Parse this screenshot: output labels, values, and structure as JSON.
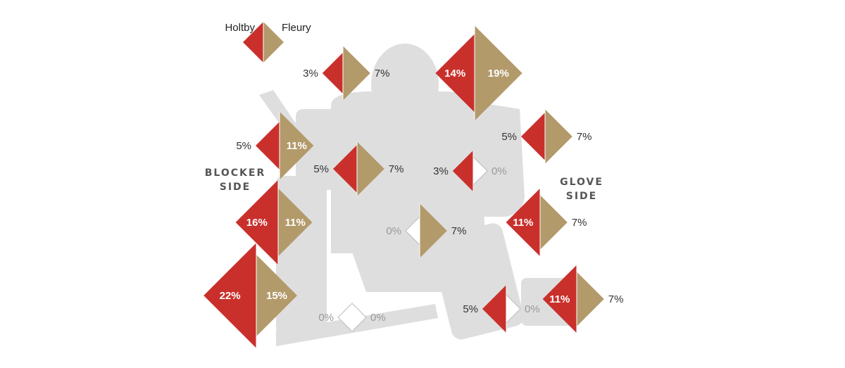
{
  "colors": {
    "holtby": "#c9302c",
    "fleury": "#b39a6b",
    "silhouette": "#dedede",
    "zero_outline": "#bbbbbb"
  },
  "legend": {
    "left": "Holtby",
    "right": "Fleury"
  },
  "sides": {
    "blocker": [
      "BLOCKER",
      "SIDE"
    ],
    "glove": [
      "GLOVE",
      "SIDE"
    ]
  },
  "chart_data": {
    "type": "diamond-pair",
    "series": [
      {
        "name": "Holtby",
        "color": "#c9302c"
      },
      {
        "name": "Fleury",
        "color": "#b39a6b"
      }
    ],
    "zones": [
      {
        "holtby": 3,
        "fleury": 7,
        "holtby_label": "3%",
        "fleury_label": "7%"
      },
      {
        "holtby": 14,
        "fleury": 19,
        "holtby_label": "14%",
        "fleury_label": "19%"
      },
      {
        "holtby": 5,
        "fleury": 11,
        "holtby_label": "5%",
        "fleury_label": "11%"
      },
      {
        "holtby": 5,
        "fleury": 7,
        "holtby_label": "5%",
        "fleury_label": "7%"
      },
      {
        "holtby": 5,
        "fleury": 7,
        "holtby_label": "5%",
        "fleury_label": "7%"
      },
      {
        "holtby": 3,
        "fleury": 0,
        "holtby_label": "3%",
        "fleury_label": "0%"
      },
      {
        "holtby": 16,
        "fleury": 11,
        "holtby_label": "16%",
        "fleury_label": "11%"
      },
      {
        "holtby": 11,
        "fleury": 7,
        "holtby_label": "11%",
        "fleury_label": "7%"
      },
      {
        "holtby": 0,
        "fleury": 7,
        "holtby_label": "0%",
        "fleury_label": "7%"
      },
      {
        "holtby": 22,
        "fleury": 15,
        "holtby_label": "22%",
        "fleury_label": "15%"
      },
      {
        "holtby": 0,
        "fleury": 0,
        "holtby_label": "0%",
        "fleury_label": "0%"
      },
      {
        "holtby": 5,
        "fleury": 0,
        "holtby_label": "5%",
        "fleury_label": "0%"
      },
      {
        "holtby": 11,
        "fleury": 7,
        "holtby_label": "11%",
        "fleury_label": "7%"
      }
    ]
  }
}
